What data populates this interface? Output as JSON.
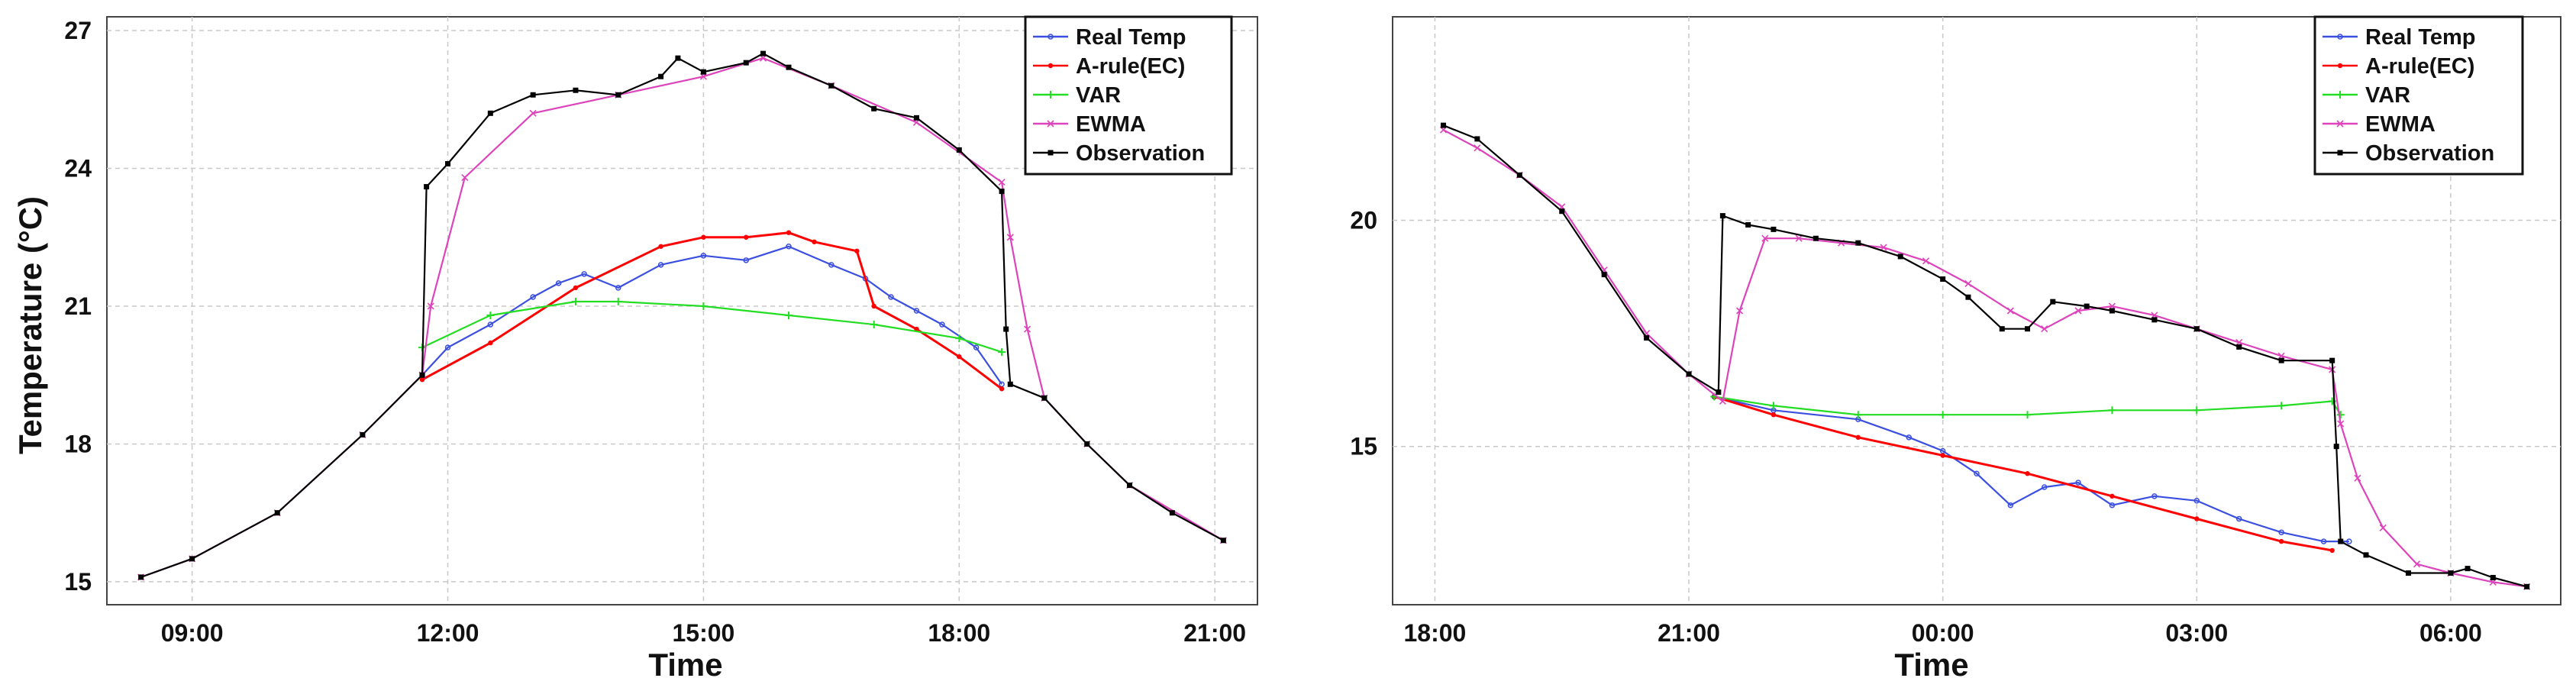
{
  "chart_data": [
    {
      "type": "line",
      "xlabel": "Time",
      "ylabel": "Temperature (°C)",
      "ylim": [
        14.5,
        27.3
      ],
      "xlim": [
        8.0,
        21.5
      ],
      "grid": true,
      "legend_position": "top-right",
      "x_ticks": [
        9,
        12,
        15,
        18,
        21
      ],
      "x_tick_labels": [
        "09:00",
        "12:00",
        "15:00",
        "18:00",
        "21:00"
      ],
      "y_ticks": [
        15,
        18,
        21,
        24,
        27
      ],
      "y_tick_labels": [
        "15",
        "18",
        "21",
        "24",
        "27"
      ],
      "series": [
        {
          "name": "Real Temp",
          "color": "#3b4fe0",
          "marker": "circle",
          "x": [
            11.7,
            12.0,
            12.5,
            13.0,
            13.3,
            13.6,
            14.0,
            14.5,
            15.0,
            15.5,
            16.0,
            16.5,
            16.9,
            17.2,
            17.5,
            17.8,
            18.2,
            18.5
          ],
          "y": [
            19.5,
            20.1,
            20.6,
            21.2,
            21.5,
            21.7,
            21.4,
            21.9,
            22.1,
            22.0,
            22.3,
            21.9,
            21.6,
            21.2,
            20.9,
            20.6,
            20.1,
            19.3
          ]
        },
        {
          "name": "A-rule(EC)",
          "color": "#ff0000",
          "marker": "dot",
          "x": [
            11.7,
            12.5,
            13.5,
            14.5,
            15.0,
            15.5,
            16.0,
            16.3,
            16.8,
            17.0,
            17.5,
            18.0,
            18.5
          ],
          "y": [
            19.4,
            20.2,
            21.4,
            22.3,
            22.5,
            22.5,
            22.6,
            22.4,
            22.2,
            21.0,
            20.5,
            19.9,
            19.2
          ]
        },
        {
          "name": "VAR",
          "color": "#22dd22",
          "marker": "plus",
          "x": [
            11.7,
            12.5,
            13.5,
            14.0,
            15.0,
            16.0,
            17.0,
            18.0,
            18.5
          ],
          "y": [
            20.1,
            20.8,
            21.1,
            21.1,
            21.0,
            20.8,
            20.6,
            20.3,
            20.0
          ]
        },
        {
          "name": "EWMA",
          "color": "#dd44bb",
          "marker": "cross",
          "x": [
            8.4,
            9.0,
            10.0,
            11.0,
            11.7,
            11.8,
            12.2,
            13.0,
            14.0,
            15.0,
            15.7,
            16.5,
            17.5,
            18.5,
            18.6,
            18.8,
            19.0,
            19.5,
            20.0,
            21.1
          ],
          "y": [
            15.1,
            15.5,
            16.5,
            18.2,
            19.5,
            21.0,
            23.8,
            25.2,
            25.6,
            26.0,
            26.4,
            25.8,
            25.0,
            23.7,
            22.5,
            20.5,
            19.0,
            18.0,
            17.1,
            15.9
          ]
        },
        {
          "name": "Observation",
          "color": "#000000",
          "marker": "square",
          "x": [
            8.4,
            9.0,
            10.0,
            11.0,
            11.7,
            11.75,
            12.0,
            12.5,
            13.0,
            13.5,
            14.0,
            14.5,
            14.7,
            15.0,
            15.5,
            15.7,
            16.0,
            16.5,
            17.0,
            17.5,
            18.0,
            18.5,
            18.55,
            18.6,
            19.0,
            19.5,
            20.0,
            20.5,
            21.1
          ],
          "y": [
            15.1,
            15.5,
            16.5,
            18.2,
            19.5,
            23.6,
            24.1,
            25.2,
            25.6,
            25.7,
            25.6,
            26.0,
            26.4,
            26.1,
            26.3,
            26.5,
            26.2,
            25.8,
            25.3,
            25.1,
            24.4,
            23.5,
            20.5,
            19.3,
            19.0,
            18.0,
            17.1,
            16.5,
            15.9
          ]
        }
      ]
    },
    {
      "type": "line",
      "xlabel": "Time",
      "ylabel": "",
      "ylim": [
        11.5,
        24.5
      ],
      "xlim": [
        17.5,
        31.3
      ],
      "grid": true,
      "legend_position": "top-right",
      "x_ticks": [
        18,
        21,
        24,
        27,
        30
      ],
      "x_tick_labels": [
        "18:00",
        "21:00",
        "00:00",
        "03:00",
        "06:00"
      ],
      "y_ticks": [
        15,
        20
      ],
      "y_tick_labels": [
        "15",
        "20"
      ],
      "series": [
        {
          "name": "Real Temp",
          "color": "#3b4fe0",
          "marker": "circle",
          "x": [
            21.3,
            22.0,
            23.0,
            23.6,
            24.0,
            24.4,
            24.8,
            25.2,
            25.6,
            26.0,
            26.5,
            27.0,
            27.5,
            28.0,
            28.5,
            28.8
          ],
          "y": [
            16.1,
            15.8,
            15.6,
            15.2,
            14.9,
            14.4,
            13.7,
            14.1,
            14.2,
            13.7,
            13.9,
            13.8,
            13.4,
            13.1,
            12.9,
            12.9
          ]
        },
        {
          "name": "A-rule(EC)",
          "color": "#ff0000",
          "marker": "dot",
          "x": [
            21.3,
            22.0,
            23.0,
            24.0,
            25.0,
            26.0,
            27.0,
            28.0,
            28.6
          ],
          "y": [
            16.1,
            15.7,
            15.2,
            14.8,
            14.4,
            13.9,
            13.4,
            12.9,
            12.7
          ]
        },
        {
          "name": "VAR",
          "color": "#22dd22",
          "marker": "plus",
          "x": [
            21.3,
            22.0,
            23.0,
            24.0,
            25.0,
            26.0,
            27.0,
            28.0,
            28.6,
            28.7
          ],
          "y": [
            16.1,
            15.9,
            15.7,
            15.7,
            15.7,
            15.8,
            15.8,
            15.9,
            16.0,
            15.7
          ]
        },
        {
          "name": "EWMA",
          "color": "#dd44bb",
          "marker": "cross",
          "x": [
            18.1,
            18.5,
            19.0,
            19.5,
            20.0,
            20.5,
            21.0,
            21.4,
            21.6,
            21.9,
            22.3,
            22.8,
            23.3,
            23.8,
            24.3,
            24.8,
            25.2,
            25.6,
            26.0,
            26.5,
            27.0,
            27.5,
            28.0,
            28.6,
            28.7,
            28.9,
            29.2,
            29.6,
            30.0,
            30.5,
            30.9
          ],
          "y": [
            22.0,
            21.6,
            21.0,
            20.3,
            18.9,
            17.5,
            16.6,
            16.0,
            18.0,
            19.6,
            19.6,
            19.5,
            19.4,
            19.1,
            18.6,
            18.0,
            17.6,
            18.0,
            18.1,
            17.9,
            17.6,
            17.3,
            17.0,
            16.7,
            15.5,
            14.3,
            13.2,
            12.4,
            12.2,
            12.0,
            11.9
          ]
        },
        {
          "name": "Observation",
          "color": "#000000",
          "marker": "square",
          "x": [
            18.1,
            18.5,
            19.0,
            19.5,
            20.0,
            20.5,
            21.0,
            21.35,
            21.4,
            21.7,
            22.0,
            22.5,
            23.0,
            23.5,
            24.0,
            24.3,
            24.7,
            25.0,
            25.3,
            25.7,
            26.0,
            26.5,
            27.0,
            27.5,
            28.0,
            28.6,
            28.65,
            28.7,
            29.0,
            29.5,
            30.0,
            30.2,
            30.5,
            30.9
          ],
          "y": [
            22.1,
            21.8,
            21.0,
            20.2,
            18.8,
            17.4,
            16.6,
            16.2,
            20.1,
            19.9,
            19.8,
            19.6,
            19.5,
            19.2,
            18.7,
            18.3,
            17.6,
            17.6,
            18.2,
            18.1,
            18.0,
            17.8,
            17.6,
            17.2,
            16.9,
            16.9,
            15.0,
            12.9,
            12.6,
            12.2,
            12.2,
            12.3,
            12.1,
            11.9
          ]
        }
      ]
    }
  ]
}
